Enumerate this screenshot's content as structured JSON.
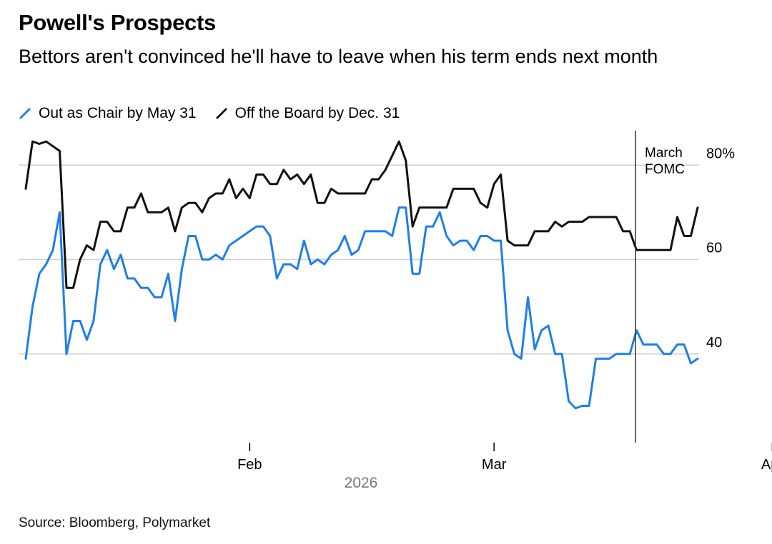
{
  "chart_data": {
    "type": "line",
    "title": "Powell's Prospects",
    "subtitle": "Bettors aren't convinced he'll have to leave when his term ends next month",
    "x_year_label": "2026",
    "x_ticks": [
      {
        "label": "Feb",
        "index": 33
      },
      {
        "label": "Mar",
        "index": 69
      },
      {
        "label": "Apr",
        "index": 110
      }
    ],
    "y_ticks": [
      {
        "value": 80,
        "label": "80%"
      },
      {
        "value": 60,
        "label": "60"
      },
      {
        "value": 40,
        "label": "40"
      }
    ],
    "ylim": [
      25,
      87
    ],
    "annotation": {
      "label_line1": "March",
      "label_line2": "FOMC",
      "index": 90
    },
    "source": "Source: Bloomberg, Polymarket",
    "series": [
      {
        "name": "Out as Chair by May 31",
        "color": "#1f7fe8",
        "values": [
          39.0,
          50.0,
          57.0,
          59.0,
          62.0,
          70.0,
          40.0,
          47.0,
          47.0,
          43.0,
          47.0,
          59.0,
          62.0,
          58.0,
          61.0,
          56.0,
          56.0,
          54.0,
          54.0,
          52.0,
          52.0,
          57.0,
          47.0,
          58.0,
          65.0,
          65.0,
          60.0,
          60.0,
          61.0,
          60.0,
          63.0,
          64.0,
          65.0,
          66.0,
          67.0,
          67.0,
          65.0,
          56.0,
          59.0,
          59.0,
          58.0,
          64.0,
          59.0,
          60.0,
          59.0,
          61.0,
          62.0,
          65.0,
          61.0,
          62.0,
          66.0,
          66.0,
          66.0,
          66.0,
          65.0,
          71.0,
          71.0,
          57.0,
          57.0,
          67.0,
          67.0,
          70.0,
          65.0,
          63.0,
          64.0,
          64.0,
          62.0,
          65.0,
          65.0,
          64.0,
          64.0,
          45.0,
          40.0,
          39.0,
          52.0,
          41.0,
          45.0,
          46.0,
          40.0,
          40.0,
          30.0,
          28.5,
          29.0,
          29.0,
          39.0,
          39.0,
          39.0,
          40.0,
          40.0,
          40.0,
          45.0,
          42.0,
          42.0,
          42.0,
          40.0,
          40.0,
          42.0,
          42.0,
          38.0,
          39.0
        ]
      },
      {
        "name": "Off the Board by Dec. 31",
        "color": "#111111",
        "values": [
          75.0,
          85.0,
          84.5,
          85.0,
          84.0,
          83.0,
          54.0,
          54.0,
          60.0,
          63.0,
          62.0,
          68.0,
          68.0,
          66.0,
          66.0,
          71.0,
          71.0,
          74.0,
          70.0,
          70.0,
          70.0,
          71.0,
          66.0,
          71.0,
          72.0,
          72.0,
          70.0,
          73.0,
          74.0,
          74.0,
          77.0,
          73.0,
          75.0,
          73.0,
          78.0,
          78.0,
          76.0,
          76.0,
          79.0,
          77.0,
          78.0,
          76.0,
          78.0,
          72.0,
          72.0,
          75.0,
          74.0,
          74.0,
          74.0,
          74.0,
          74.0,
          77.0,
          77.0,
          79.0,
          82.0,
          85.0,
          81.0,
          67.0,
          71.0,
          71.0,
          71.0,
          71.0,
          71.0,
          75.0,
          75.0,
          75.0,
          75.0,
          72.0,
          71.0,
          76.0,
          78.0,
          64.0,
          63.0,
          63.0,
          63.0,
          66.0,
          66.0,
          66.0,
          68.0,
          67.0,
          68.0,
          68.0,
          68.0,
          69.0,
          69.0,
          69.0,
          69.0,
          69.0,
          66.0,
          66.0,
          62.0,
          62.0,
          62.0,
          62.0,
          62.0,
          62.0,
          69.0,
          65.0,
          65.0,
          71.0
        ]
      }
    ]
  }
}
